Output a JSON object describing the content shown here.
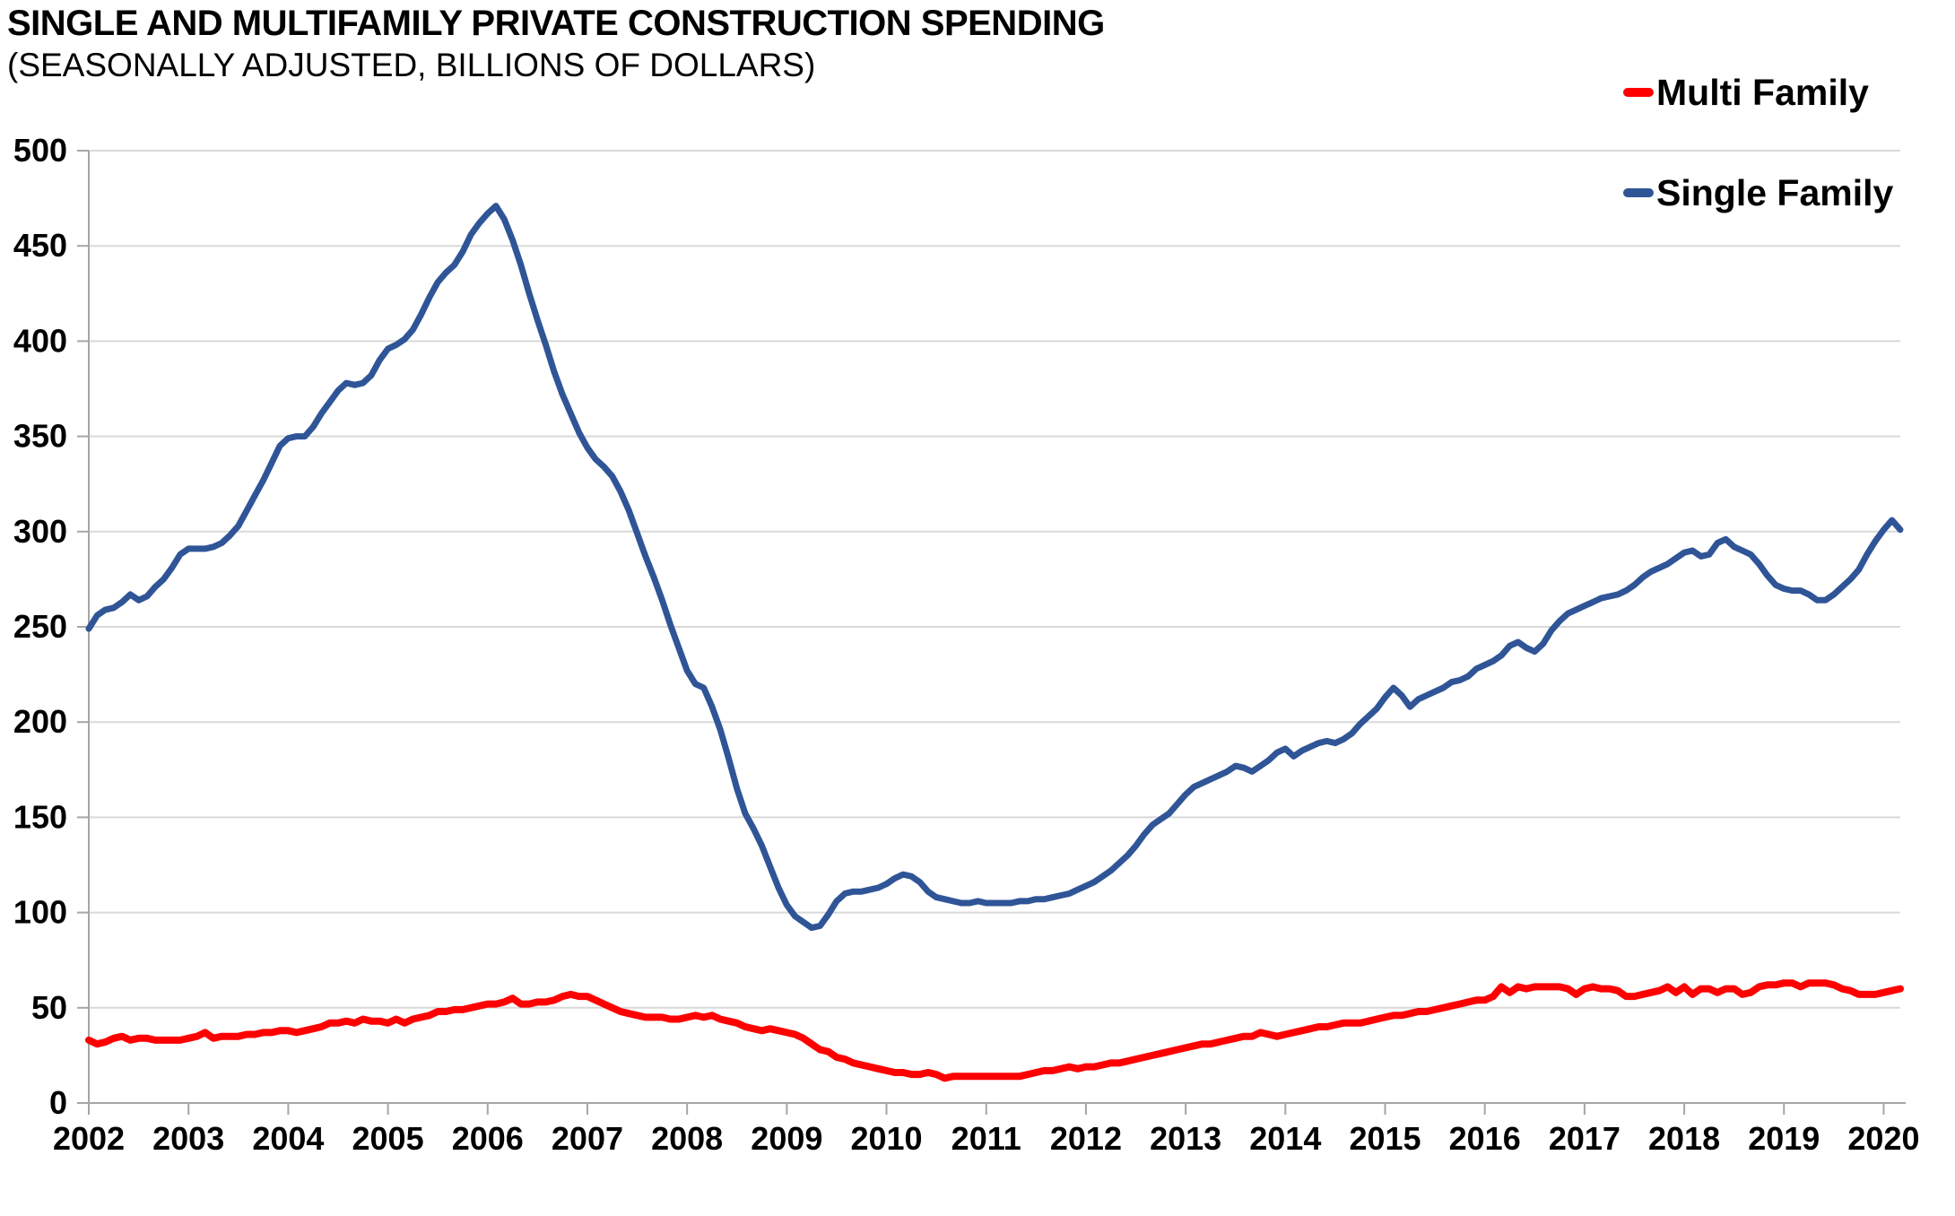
{
  "chart_data": {
    "type": "line",
    "title": "SINGLE AND MULTIFAMILY PRIVATE CONSTRUCTION SPENDING",
    "subtitle": "(SEASONALLY ADJUSTED, BILLIONS OF DOLLARS)",
    "grid": "horizontal",
    "x_axis": {
      "frequency": "monthly",
      "tick_every_months": 12,
      "tick_labels": [
        "2002",
        "2003",
        "2004",
        "2005",
        "2006",
        "2007",
        "2008",
        "2009",
        "2010",
        "2011",
        "2012",
        "2013",
        "2014",
        "2015",
        "2016",
        "2017",
        "2018",
        "2019",
        "2020"
      ]
    },
    "y_axis": {
      "min": 0,
      "max": 500,
      "step": 50,
      "tick_labels": [
        "0",
        "50",
        "100",
        "150",
        "200",
        "250",
        "300",
        "350",
        "400",
        "450",
        "500"
      ]
    },
    "legend": {
      "position": "top-right",
      "entries": [
        {
          "label": "Multi Family",
          "color": "#FE0000"
        },
        {
          "label": "Single Family",
          "color": "#2F5597"
        }
      ]
    },
    "series": [
      {
        "id": "multi-family",
        "name": "Multi Family",
        "color": "#FE0000",
        "stroke_width": 8,
        "values": [
          33,
          31,
          32,
          34,
          35,
          33,
          34,
          34,
          33,
          33,
          33,
          33,
          34,
          35,
          37,
          34,
          35,
          35,
          35,
          36,
          36,
          37,
          37,
          38,
          38,
          37,
          38,
          39,
          40,
          42,
          42,
          43,
          42,
          44,
          43,
          43,
          42,
          44,
          42,
          44,
          45,
          46,
          48,
          48,
          49,
          49,
          50,
          51,
          52,
          52,
          53,
          55,
          52,
          52,
          53,
          53,
          54,
          56,
          57,
          56,
          56,
          54,
          52,
          50,
          48,
          47,
          46,
          45,
          45,
          45,
          44,
          44,
          45,
          46,
          45,
          46,
          44,
          43,
          42,
          40,
          39,
          38,
          39,
          38,
          37,
          36,
          34,
          31,
          28,
          27,
          24,
          23,
          21,
          20,
          19,
          18,
          17,
          16,
          16,
          15,
          15,
          16,
          15,
          13,
          14,
          14,
          14,
          14,
          14,
          14,
          14,
          14,
          14,
          15,
          16,
          17,
          17,
          18,
          19,
          18,
          19,
          19,
          20,
          21,
          21,
          22,
          23,
          24,
          25,
          26,
          27,
          28,
          29,
          30,
          31,
          31,
          32,
          33,
          34,
          35,
          35,
          37,
          36,
          35,
          36,
          37,
          38,
          39,
          40,
          40,
          41,
          42,
          42,
          42,
          43,
          44,
          45,
          46,
          46,
          47,
          48,
          48,
          49,
          50,
          51,
          52,
          53,
          54,
          54,
          56,
          61,
          58,
          61,
          60,
          61,
          61,
          61,
          61,
          60,
          57,
          60,
          61,
          60,
          60,
          59,
          56,
          56,
          57,
          58,
          59,
          61,
          58,
          61,
          57,
          60,
          60,
          58,
          60,
          60,
          57,
          58,
          61,
          62,
          62,
          63,
          63,
          61,
          63,
          63,
          63,
          62,
          60,
          59,
          57,
          57,
          57,
          58,
          59,
          60
        ]
      },
      {
        "id": "single-family",
        "name": "Single Family",
        "color": "#2F5597",
        "stroke_width": 7,
        "values": [
          249,
          256,
          259,
          260,
          263,
          267,
          264,
          266,
          271,
          275,
          281,
          288,
          291,
          291,
          291,
          292,
          294,
          298,
          303,
          311,
          319,
          327,
          336,
          345,
          349,
          350,
          350,
          355,
          362,
          368,
          374,
          378,
          377,
          378,
          382,
          390,
          396,
          398,
          401,
          406,
          414,
          423,
          431,
          436,
          440,
          447,
          456,
          462,
          467,
          471,
          464,
          453,
          440,
          425,
          411,
          398,
          384,
          372,
          362,
          352,
          344,
          338,
          334,
          329,
          321,
          311,
          299,
          287,
          276,
          264,
          251,
          239,
          227,
          220,
          218,
          208,
          196,
          181,
          165,
          152,
          144,
          135,
          124,
          113,
          104,
          98,
          95,
          92,
          93,
          99,
          106,
          110,
          111,
          111,
          112,
          113,
          115,
          118,
          120,
          119,
          116,
          111,
          108,
          107,
          106,
          105,
          105,
          106,
          105,
          105,
          105,
          105,
          106,
          106,
          107,
          107,
          108,
          109,
          110,
          112,
          114,
          116,
          119,
          122,
          126,
          130,
          135,
          141,
          146,
          149,
          152,
          157,
          162,
          166,
          168,
          170,
          172,
          174,
          177,
          176,
          174,
          177,
          180,
          184,
          186,
          182,
          185,
          187,
          189,
          190,
          189,
          191,
          194,
          199,
          203,
          207,
          213,
          218,
          214,
          208,
          212,
          214,
          216,
          218,
          221,
          222,
          224,
          228,
          230,
          232,
          235,
          240,
          242,
          239,
          237,
          241,
          248,
          253,
          257,
          259,
          261,
          263,
          265,
          266,
          267,
          269,
          272,
          276,
          279,
          281,
          283,
          286,
          289,
          290,
          287,
          288,
          294,
          296,
          292,
          290,
          288,
          283,
          277,
          272,
          270,
          269,
          269,
          267,
          264,
          264,
          267,
          271,
          275,
          280,
          288,
          295,
          301,
          306,
          301
        ]
      }
    ]
  }
}
